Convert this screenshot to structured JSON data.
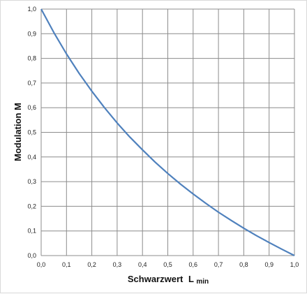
{
  "chart_data": {
    "type": "line",
    "title": "",
    "xlabel": "Schwarzwert",
    "xlabel_sub": "min",
    "xlabel_main_letter": "L",
    "ylabel": "Modulation  M",
    "xlim": [
      0,
      1
    ],
    "ylim": [
      0,
      1
    ],
    "x_tick_labels": [
      "0,0",
      "0,1",
      "0,2",
      "0,3",
      "0,4",
      "0,5",
      "0,6",
      "0,7",
      "0,8",
      "0,9",
      "1,0"
    ],
    "y_tick_labels": [
      "0,0",
      "0,1",
      "0,2",
      "0,3",
      "0,4",
      "0,5",
      "0,6",
      "0,7",
      "0,8",
      "0,9",
      "1,0"
    ],
    "grid": true,
    "series": [
      {
        "color": "#4f81bd",
        "x": [
          0.0,
          0.05,
          0.1,
          0.15,
          0.2,
          0.25,
          0.3,
          0.35,
          0.4,
          0.45,
          0.5,
          0.55,
          0.6,
          0.65,
          0.7,
          0.75,
          0.8,
          0.85,
          0.9,
          0.95,
          1.0
        ],
        "y": [
          1.0,
          0.905,
          0.818,
          0.739,
          0.667,
          0.6,
          0.538,
          0.481,
          0.429,
          0.379,
          0.333,
          0.29,
          0.25,
          0.212,
          0.176,
          0.143,
          0.111,
          0.081,
          0.053,
          0.026,
          0.0
        ]
      }
    ]
  }
}
